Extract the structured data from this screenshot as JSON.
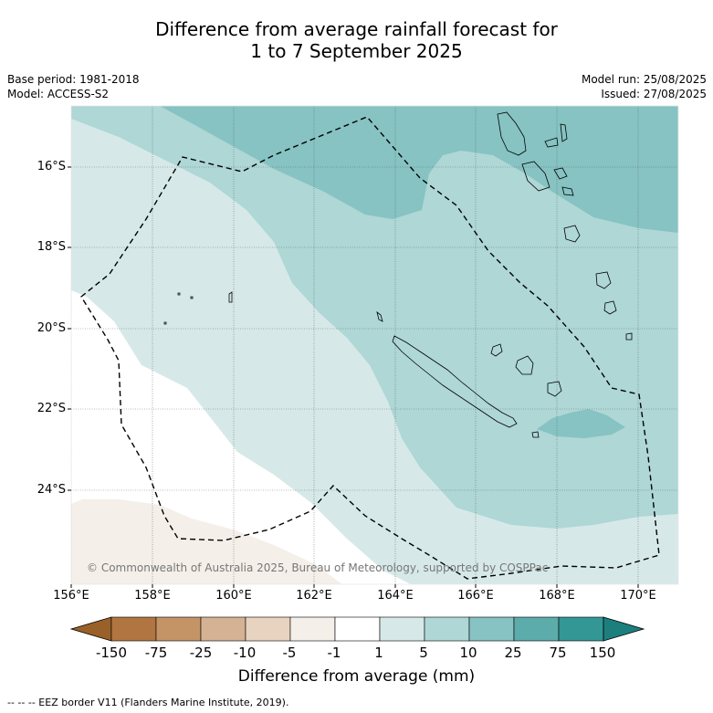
{
  "title_line1": "Difference from average rainfall forecast for",
  "title_line2": "1 to 7 September 2025",
  "base_period": "Base period: 1981-2018",
  "model": "Model: ACCESS-S2",
  "model_run": "Model run: 25/08/2025",
  "issued": "Issued: 27/08/2025",
  "copyright": "© Commonwealth of Australia 2025, Bureau of Meteorology, supported by COSPPac",
  "latitude_labels": [
    "16°S",
    "18°S",
    "20°S",
    "22°S",
    "24°S"
  ],
  "longitude_labels": [
    "156°E",
    "158°E",
    "160°E",
    "162°E",
    "164°E",
    "166°E",
    "168°E",
    "170°E"
  ],
  "colorbar": {
    "labels": [
      "-150",
      "-75",
      "-25",
      "-10",
      "-5",
      "-1",
      "1",
      "5",
      "10",
      "25",
      "75",
      "150"
    ],
    "colors": [
      "#9a6029",
      "#b07541",
      "#c49467",
      "#d5b294",
      "#e8d3c0",
      "#f4efe9",
      "#ffffff",
      "#d6e9e8",
      "#aed7d6",
      "#86c3c2",
      "#5bacab",
      "#339796",
      "#1c7f7d"
    ],
    "title": "Difference from average (mm)"
  },
  "legend_footer": "-- -- -- EEZ border V11 (Flanders Marine Institute, 2019)."
}
